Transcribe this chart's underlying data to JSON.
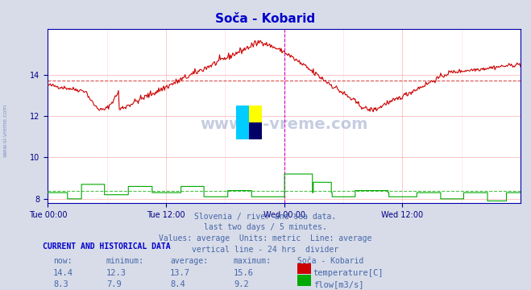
{
  "title": "Soča - Kobarid",
  "title_color": "#0000cc",
  "bg_color": "#d8dce8",
  "plot_bg_color": "#ffffff",
  "grid_color": "#ffb0b0",
  "grid_minor_color": "#ffe0e0",
  "temp_color": "#cc0000",
  "flow_color": "#00aa00",
  "temp_avg": 13.7,
  "flow_avg": 8.4,
  "temp_min": 12.3,
  "temp_max": 15.6,
  "temp_now": 14.4,
  "flow_min": 7.9,
  "flow_max": 9.2,
  "flow_now": 8.3,
  "ylim": [
    7.8,
    16.2
  ],
  "yticks": [
    8,
    10,
    12,
    14
  ],
  "xlabel_color": "#000088",
  "divider_color": "#cc00cc",
  "footer_color": "#4466aa",
  "footer_lines": [
    "Slovenia / river and sea data.",
    "last two days / 5 minutes.",
    "Values: average  Units: metric  Line: average",
    "vertical line - 24 hrs  divider"
  ],
  "table_header": "CURRENT AND HISTORICAL DATA",
  "table_cols": [
    "now:",
    "minimum:",
    "average:",
    "maximum:",
    "Soča - Kobarid"
  ],
  "table_row1": [
    "14.4",
    "12.3",
    "13.7",
    "15.6",
    "temperature[C]"
  ],
  "table_row2": [
    "8.3",
    "7.9",
    "8.4",
    "9.2",
    "flow[m3/s]"
  ],
  "xtick_labels": [
    "Tue 00:00",
    "Tue 12:00",
    "Wed 00:00",
    "Wed 12:00"
  ],
  "xtick_positions": [
    0,
    0.25,
    0.5,
    0.75
  ],
  "watermark": "www.si-vreme.com"
}
